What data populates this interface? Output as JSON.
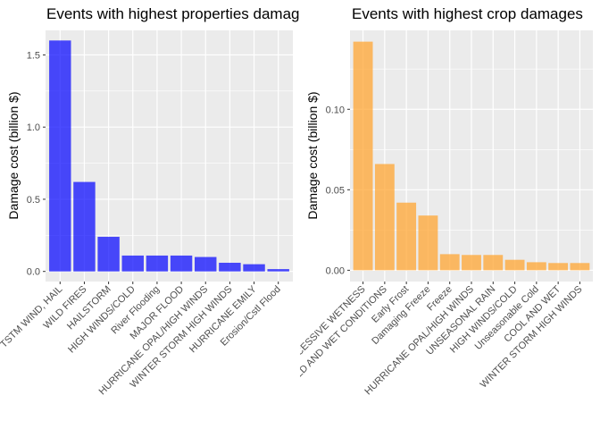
{
  "chart_data": [
    {
      "type": "bar",
      "title": "Events with highest properties damages",
      "xlabel": "",
      "ylabel": "Damage cost (billion $)",
      "ylim": [
        -0.07,
        1.67
      ],
      "yticks": [
        "0.0",
        "0.5",
        "1.0",
        "1.5"
      ],
      "grid": true,
      "bar_color": "#0000ff",
      "categories": [
        "TSTM WIND, HAIL",
        "WILD FIRES",
        "HAILSTORM",
        "HIGH WINDS/COLD",
        "River Flooding",
        "MAJOR FLOOD",
        "HURRICANE OPAL/HIGH WINDS",
        "WINTER STORM HIGH WINDS",
        "HURRICANE EMILY",
        "Erosion/Cstl Flood"
      ],
      "values": [
        1.6,
        0.62,
        0.24,
        0.11,
        0.11,
        0.11,
        0.1,
        0.06,
        0.05,
        0.016
      ]
    },
    {
      "type": "bar",
      "title": "Events with highest crop damages",
      "xlabel": "",
      "ylabel": "Damage cost (billion $)",
      "ylim": [
        -0.007,
        0.149
      ],
      "yticks": [
        "0.00",
        "0.05",
        "0.10"
      ],
      "grid": true,
      "bar_color": "#ffa533",
      "categories": [
        "EXCESSIVE WETNESS",
        "COLD AND WET CONDITIONS",
        "Early Frost",
        "Damaging Freeze",
        "Freeze",
        "HURRICANE OPAL/HIGH WINDS",
        "UNSEASONAL RAIN",
        "HIGH WINDS/COLD",
        "Unseasonable Cold",
        "COOL AND WET",
        "WINTER STORM HIGH WINDS"
      ],
      "values": [
        0.142,
        0.066,
        0.042,
        0.034,
        0.01,
        0.0095,
        0.0095,
        0.0065,
        0.005,
        0.0045,
        0.0045
      ]
    }
  ]
}
